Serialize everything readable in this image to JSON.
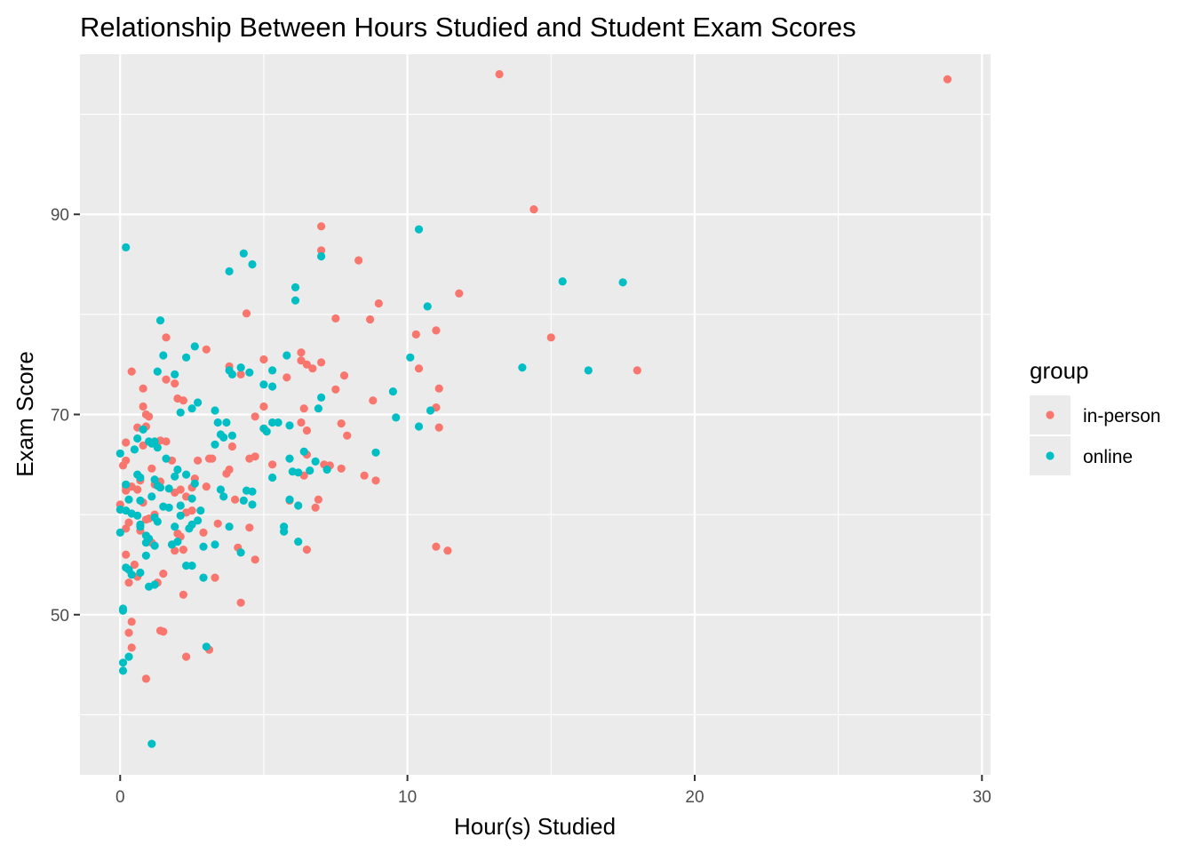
{
  "chart_data": {
    "type": "scatter",
    "title": "Relationship Between Hours Studied and Student Exam Scores",
    "xlabel": "Hour(s) Studied",
    "ylabel": "Exam Score",
    "xlim": [
      -1.4,
      30.3
    ],
    "ylim": [
      34,
      106
    ],
    "x_ticks": [
      0,
      10,
      20,
      30
    ],
    "x_tick_labels": [
      "0",
      "10",
      "20",
      "30"
    ],
    "y_ticks": [
      50,
      70,
      90
    ],
    "y_tick_labels": [
      "50",
      "70",
      "90"
    ],
    "grid": true,
    "legend": {
      "title": "group",
      "placement": "right"
    },
    "series": [
      {
        "name": "in-person",
        "color": "#F8766D",
        "points": [
          [
            13.2,
            104.0
          ],
          [
            28.8,
            103.5
          ],
          [
            14.4,
            90.5
          ],
          [
            7.0,
            88.8
          ],
          [
            7.0,
            86.4
          ],
          [
            8.3,
            85.4
          ],
          [
            9.0,
            81.1
          ],
          [
            11.8,
            82.1
          ],
          [
            4.4,
            80.1
          ],
          [
            7.5,
            79.6
          ],
          [
            8.7,
            79.5
          ],
          [
            10.3,
            78.0
          ],
          [
            11.0,
            78.4
          ],
          [
            15.0,
            77.7
          ],
          [
            1.6,
            77.7
          ],
          [
            3.0,
            76.5
          ],
          [
            6.3,
            76.2
          ],
          [
            5.0,
            75.5
          ],
          [
            6.3,
            75.4
          ],
          [
            6.5,
            75.0
          ],
          [
            7.0,
            75.2
          ],
          [
            3.8,
            74.8
          ],
          [
            6.7,
            74.6
          ],
          [
            10.4,
            74.6
          ],
          [
            18.0,
            74.4
          ],
          [
            0.4,
            74.3
          ],
          [
            4.2,
            74.0
          ],
          [
            5.8,
            73.7
          ],
          [
            7.8,
            73.9
          ],
          [
            1.6,
            73.5
          ],
          [
            1.9,
            73.1
          ],
          [
            7.5,
            72.5
          ],
          [
            0.8,
            72.6
          ],
          [
            11.1,
            72.6
          ],
          [
            2.0,
            71.6
          ],
          [
            8.8,
            71.4
          ],
          [
            2.2,
            71.4
          ],
          [
            0.8,
            70.8
          ],
          [
            5.0,
            70.8
          ],
          [
            6.4,
            70.6
          ],
          [
            11.0,
            70.7
          ],
          [
            0.9,
            70.0
          ],
          [
            1.0,
            69.8
          ],
          [
            4.7,
            69.8
          ],
          [
            6.3,
            69.2
          ],
          [
            7.7,
            69.1
          ],
          [
            0.9,
            68.8
          ],
          [
            0.6,
            68.7
          ],
          [
            11.1,
            68.7
          ],
          [
            6.5,
            68.4
          ],
          [
            5.0,
            68.6
          ],
          [
            1.6,
            67.3
          ],
          [
            7.9,
            67.9
          ],
          [
            1.4,
            67.4
          ],
          [
            0.2,
            67.2
          ],
          [
            0.8,
            66.9
          ],
          [
            3.9,
            66.8
          ],
          [
            6.5,
            66.0
          ],
          [
            4.7,
            65.8
          ],
          [
            4.5,
            65.6
          ],
          [
            2.7,
            65.4
          ],
          [
            3.1,
            65.6
          ],
          [
            3.2,
            65.6
          ],
          [
            5.3,
            65.0
          ],
          [
            7.1,
            65.0
          ],
          [
            7.3,
            64.9
          ],
          [
            0.2,
            65.4
          ],
          [
            1.8,
            65.4
          ],
          [
            0.1,
            64.9
          ],
          [
            1.1,
            64.6
          ],
          [
            3.8,
            64.5
          ],
          [
            3.7,
            64.1
          ],
          [
            7.7,
            64.6
          ],
          [
            8.5,
            63.9
          ],
          [
            8.9,
            63.4
          ],
          [
            6.4,
            63.9
          ],
          [
            2.6,
            63.6
          ],
          [
            1.4,
            63.3
          ],
          [
            0.7,
            63.4
          ],
          [
            1.2,
            63.0
          ],
          [
            0.4,
            62.8
          ],
          [
            0.2,
            62.4
          ],
          [
            0.6,
            62.5
          ],
          [
            2.5,
            62.7
          ],
          [
            3.0,
            62.8
          ],
          [
            2.1,
            62.5
          ],
          [
            1.9,
            62.2
          ],
          [
            2.3,
            61.8
          ],
          [
            6.9,
            61.5
          ],
          [
            4.0,
            61.5
          ],
          [
            0.8,
            61.2
          ],
          [
            5.9,
            61.4
          ],
          [
            6.8,
            60.7
          ],
          [
            2.5,
            60.4
          ],
          [
            1.2,
            60.0
          ],
          [
            2.3,
            60.2
          ],
          [
            1.0,
            59.6
          ],
          [
            0.9,
            59.5
          ],
          [
            3.4,
            59.1
          ],
          [
            4.5,
            58.7
          ],
          [
            0.3,
            59.2
          ],
          [
            0.2,
            58.6
          ],
          [
            0.7,
            58.4
          ],
          [
            2.0,
            58.1
          ],
          [
            2.1,
            57.8
          ],
          [
            2.9,
            58.2
          ],
          [
            1.1,
            57.2
          ],
          [
            4.1,
            56.7
          ],
          [
            2.2,
            56.5
          ],
          [
            1.9,
            56.4
          ],
          [
            6.5,
            56.5
          ],
          [
            11.0,
            56.8
          ],
          [
            11.4,
            56.4
          ],
          [
            0.2,
            56.0
          ],
          [
            0.5,
            55.0
          ],
          [
            4.7,
            55.5
          ],
          [
            3.3,
            53.7
          ],
          [
            1.5,
            54.1
          ],
          [
            0.6,
            53.8
          ],
          [
            0.3,
            53.2
          ],
          [
            1.3,
            53.2
          ],
          [
            2.2,
            52.0
          ],
          [
            4.2,
            51.2
          ],
          [
            0.4,
            49.3
          ],
          [
            0.3,
            48.2
          ],
          [
            1.4,
            48.4
          ],
          [
            1.5,
            48.3
          ],
          [
            0.4,
            46.7
          ],
          [
            2.3,
            45.8
          ],
          [
            3.1,
            46.5
          ],
          [
            0.9,
            43.6
          ],
          [
            0.0,
            61.0
          ],
          [
            0.2,
            62.8
          ]
        ]
      },
      {
        "name": "online",
        "color": "#00BFC4",
        "points": [
          [
            0.2,
            86.7
          ],
          [
            10.4,
            88.5
          ],
          [
            4.3,
            86.1
          ],
          [
            4.6,
            85.0
          ],
          [
            3.8,
            84.3
          ],
          [
            7.0,
            85.8
          ],
          [
            6.1,
            82.7
          ],
          [
            6.1,
            81.4
          ],
          [
            15.4,
            83.3
          ],
          [
            17.5,
            83.2
          ],
          [
            10.7,
            80.8
          ],
          [
            1.4,
            79.4
          ],
          [
            10.1,
            75.7
          ],
          [
            5.8,
            75.9
          ],
          [
            1.5,
            75.9
          ],
          [
            2.3,
            75.7
          ],
          [
            14.0,
            74.7
          ],
          [
            16.3,
            74.4
          ],
          [
            2.6,
            76.8
          ],
          [
            4.2,
            74.7
          ],
          [
            3.8,
            74.4
          ],
          [
            4.5,
            74.2
          ],
          [
            5.3,
            74.4
          ],
          [
            3.9,
            74.0
          ],
          [
            1.3,
            74.3
          ],
          [
            1.9,
            74.0
          ],
          [
            5.0,
            73.0
          ],
          [
            5.3,
            72.8
          ],
          [
            9.5,
            72.3
          ],
          [
            7.0,
            71.7
          ],
          [
            2.7,
            71.2
          ],
          [
            2.5,
            70.6
          ],
          [
            10.8,
            70.4
          ],
          [
            6.9,
            70.6
          ],
          [
            3.3,
            70.4
          ],
          [
            2.1,
            70.2
          ],
          [
            9.6,
            69.7
          ],
          [
            5.5,
            69.2
          ],
          [
            5.3,
            69.2
          ],
          [
            3.7,
            69.2
          ],
          [
            3.4,
            69.2
          ],
          [
            10.4,
            68.8
          ],
          [
            5.9,
            68.9
          ],
          [
            0.8,
            68.5
          ],
          [
            5.1,
            68.3
          ],
          [
            5.0,
            68.6
          ],
          [
            3.5,
            68.0
          ],
          [
            3.9,
            67.9
          ],
          [
            3.6,
            67.7
          ],
          [
            1.0,
            67.3
          ],
          [
            0.6,
            67.6
          ],
          [
            1.1,
            67.1
          ],
          [
            1.2,
            67.3
          ],
          [
            3.3,
            67.0
          ],
          [
            0.5,
            66.5
          ],
          [
            8.9,
            66.2
          ],
          [
            1.3,
            66.7
          ],
          [
            6.4,
            66.3
          ],
          [
            0.0,
            66.1
          ],
          [
            1.6,
            65.6
          ],
          [
            5.9,
            65.6
          ],
          [
            6.8,
            65.3
          ],
          [
            2.0,
            64.5
          ],
          [
            0.6,
            64.0
          ],
          [
            6.2,
            64.2
          ],
          [
            6.6,
            64.4
          ],
          [
            6.0,
            64.3
          ],
          [
            2.3,
            64.0
          ],
          [
            0.7,
            63.7
          ],
          [
            1.2,
            63.5
          ],
          [
            1.9,
            63.8
          ],
          [
            1.3,
            62.9
          ],
          [
            7.2,
            64.5
          ],
          [
            2.6,
            63.1
          ],
          [
            5.3,
            63.7
          ],
          [
            4.4,
            62.4
          ],
          [
            3.5,
            62.5
          ],
          [
            1.7,
            62.6
          ],
          [
            1.4,
            62.7
          ],
          [
            4.6,
            62.3
          ],
          [
            0.2,
            63.0
          ],
          [
            1.1,
            61.8
          ],
          [
            2.5,
            61.6
          ],
          [
            4.3,
            61.4
          ],
          [
            0.7,
            61.4
          ],
          [
            3.6,
            61.8
          ],
          [
            0.3,
            61.5
          ],
          [
            5.9,
            61.5
          ],
          [
            4.6,
            61.0
          ],
          [
            2.1,
            60.9
          ],
          [
            1.7,
            60.7
          ],
          [
            1.5,
            60.8
          ],
          [
            6.2,
            60.9
          ],
          [
            2.8,
            60.4
          ],
          [
            0.0,
            60.5
          ],
          [
            0.2,
            60.4
          ],
          [
            0.4,
            60.1
          ],
          [
            0.6,
            59.9
          ],
          [
            2.1,
            59.9
          ],
          [
            1.2,
            59.7
          ],
          [
            1.3,
            59.3
          ],
          [
            2.7,
            59.4
          ],
          [
            0.7,
            59.0
          ],
          [
            0.7,
            58.8
          ],
          [
            2.5,
            59.0
          ],
          [
            3.8,
            58.8
          ],
          [
            1.9,
            58.8
          ],
          [
            5.7,
            58.8
          ],
          [
            0.0,
            58.2
          ],
          [
            2.4,
            58.6
          ],
          [
            0.9,
            57.9
          ],
          [
            1.0,
            57.6
          ],
          [
            5.7,
            58.3
          ],
          [
            0.9,
            57.2
          ],
          [
            2.0,
            57.3
          ],
          [
            1.8,
            57.0
          ],
          [
            3.3,
            57.0
          ],
          [
            6.2,
            57.3
          ],
          [
            1.2,
            56.9
          ],
          [
            2.9,
            56.8
          ],
          [
            4.2,
            56.2
          ],
          [
            0.9,
            55.9
          ],
          [
            2.3,
            54.9
          ],
          [
            2.5,
            54.9
          ],
          [
            0.2,
            54.7
          ],
          [
            0.7,
            54.2
          ],
          [
            0.3,
            54.5
          ],
          [
            0.4,
            54.0
          ],
          [
            2.9,
            53.7
          ],
          [
            1.0,
            52.8
          ],
          [
            1.2,
            53.0
          ],
          [
            0.1,
            50.6
          ],
          [
            0.1,
            50.4
          ],
          [
            3.0,
            46.8
          ],
          [
            0.3,
            45.8
          ],
          [
            0.1,
            45.2
          ],
          [
            0.1,
            44.4
          ],
          [
            1.1,
            37.1
          ]
        ]
      }
    ]
  }
}
